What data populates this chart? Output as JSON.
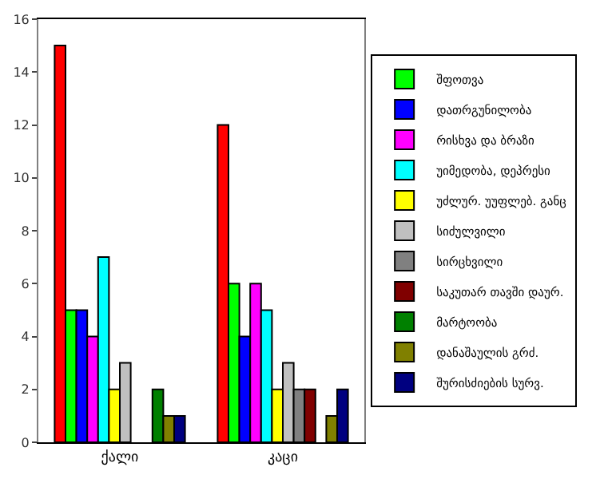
{
  "chart_data": {
    "type": "bar",
    "categories": [
      "ქალი",
      "კაცი"
    ],
    "series": [
      {
        "color": "#ff0000",
        "values": [
          15,
          12
        ]
      },
      {
        "name": "შფოთვა",
        "color": "#00ff00",
        "values": [
          5,
          6
        ]
      },
      {
        "name": "დათრგუნილობა",
        "color": "#0000ff",
        "values": [
          5,
          4
        ]
      },
      {
        "name": "რისხვა და ბრაზი",
        "color": "#ff00ff",
        "values": [
          4,
          6
        ]
      },
      {
        "name": "უიმედობა, დეპრესი",
        "color": "#00ffff",
        "values": [
          7,
          5
        ]
      },
      {
        "name": "უძლურ. უუფლებ. განც",
        "color": "#ffff00",
        "values": [
          2,
          2
        ]
      },
      {
        "name": "სიძულვილი",
        "color": "#c0c0c0",
        "values": [
          3,
          3
        ]
      },
      {
        "name": "სირცხვილი",
        "color": "#808080",
        "values": [
          null,
          2
        ]
      },
      {
        "name": "საკუთარ თავში დაურ.",
        "color": "#800000",
        "values": [
          null,
          2
        ]
      },
      {
        "name": "მარტოობა",
        "color": "#008000",
        "values": [
          2,
          null
        ]
      },
      {
        "name": "დანაშაულის გრძ.",
        "color": "#808000",
        "values": [
          1,
          1
        ]
      },
      {
        "name": "შურისძიების სურვ.",
        "color": "#000080",
        "values": [
          1,
          2
        ]
      }
    ],
    "ylim": [
      0,
      16
    ],
    "yticks": [
      0,
      2,
      4,
      6,
      8,
      10,
      12,
      14,
      16
    ],
    "grid": false,
    "legend": "right"
  }
}
